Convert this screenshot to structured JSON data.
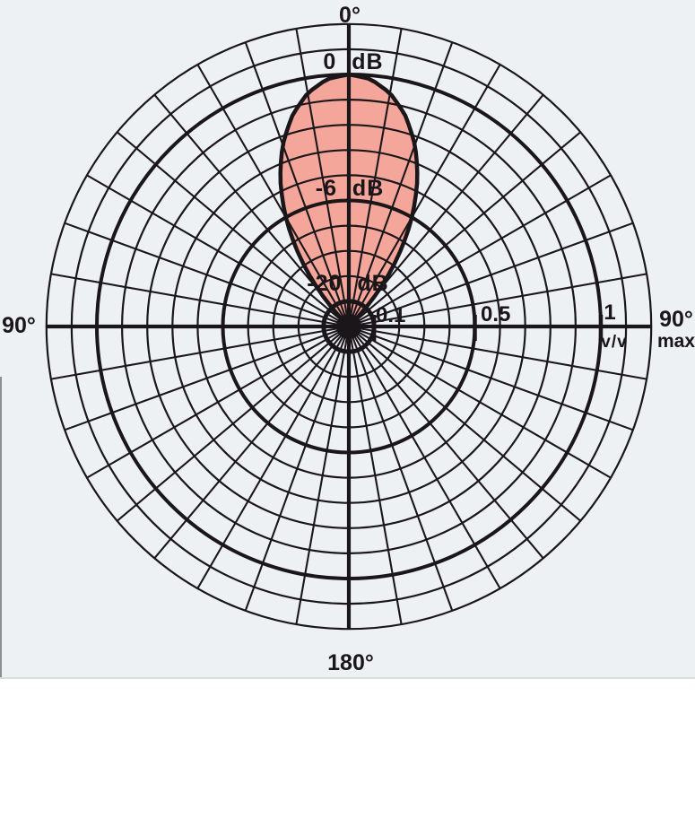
{
  "figure": {
    "angle_labels": {
      "top": "0°",
      "bottom": "180°",
      "left": "90°",
      "right": "90°"
    },
    "radial_unit": {
      "numerator": "v/v",
      "denominator": "max"
    },
    "db_rings": [
      {
        "label": "0 dB",
        "v_value": 1.0
      },
      {
        "label": "-6 dB",
        "v_value": 0.5
      },
      {
        "label": "-20 dB",
        "v_value": 0.1
      }
    ],
    "axis_tick_labels": {
      "t01": "0.1",
      "t05": "0.5",
      "t1": "1"
    }
  },
  "colors": {
    "ink": "#1a161a",
    "lobe_fill": "#f5a69a",
    "figure_bg": "#eef1f4",
    "page_bg": "#ffffff"
  },
  "chart_data": {
    "type": "polar-pattern",
    "description": "Directional (polar) response pattern with narrow forward lobe at 0°",
    "angle_zero_position": "top",
    "angular_gridline_step_deg": 10,
    "radial_scale": {
      "kind": "linear amplitude v/v max",
      "unit": "v/v max",
      "circle_values": [
        0.1,
        0.2,
        0.3,
        0.4,
        0.5,
        0.6,
        0.7,
        0.8,
        0.9,
        1.0,
        1.1,
        1.2
      ],
      "bold_circle_values": [
        0.1,
        0.5,
        1.0
      ],
      "tick_values": [
        0.1,
        0.5,
        1.0
      ],
      "db_equivalents": [
        {
          "db": "0 dB",
          "v": 1.0
        },
        {
          "db": "-6 dB",
          "v": 0.5
        },
        {
          "db": "-20 dB",
          "v": 0.1
        }
      ]
    },
    "series": [
      {
        "name": "main-lobe",
        "symmetric_about_0deg": true,
        "null_angle_deg": 45,
        "points_theta_deg": [
          0,
          5,
          10,
          15,
          20,
          25,
          30,
          35,
          40,
          45
        ],
        "points_v": [
          1.0,
          0.985,
          0.94,
          0.866,
          0.766,
          0.643,
          0.5,
          0.342,
          0.174,
          0
        ]
      }
    ]
  }
}
